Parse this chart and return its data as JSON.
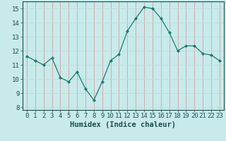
{
  "x": [
    0,
    1,
    2,
    3,
    4,
    5,
    6,
    7,
    8,
    9,
    10,
    11,
    12,
    13,
    14,
    15,
    16,
    17,
    18,
    19,
    20,
    21,
    22,
    23
  ],
  "y": [
    11.6,
    11.3,
    11.0,
    11.5,
    10.1,
    9.8,
    10.5,
    9.3,
    8.5,
    9.8,
    11.3,
    11.75,
    13.4,
    14.3,
    15.1,
    15.0,
    14.3,
    13.3,
    12.0,
    12.35,
    12.35,
    11.8,
    11.7,
    11.3
  ],
  "line_color": "#1a7a6e",
  "marker_color": "#1a7a6e",
  "bg_color": "#c8eaea",
  "grid_color_v": "#d89090",
  "grid_color_h": "#b8d8d8",
  "xlabel": "Humidex (Indice chaleur)",
  "ylim": [
    7.8,
    15.5
  ],
  "xlim": [
    -0.5,
    23.5
  ],
  "yticks": [
    8,
    9,
    10,
    11,
    12,
    13,
    14,
    15
  ],
  "xticks": [
    0,
    1,
    2,
    3,
    4,
    5,
    6,
    7,
    8,
    9,
    10,
    11,
    12,
    13,
    14,
    15,
    16,
    17,
    18,
    19,
    20,
    21,
    22,
    23
  ],
  "tick_fontsize": 6.5,
  "xlabel_fontsize": 7.5
}
